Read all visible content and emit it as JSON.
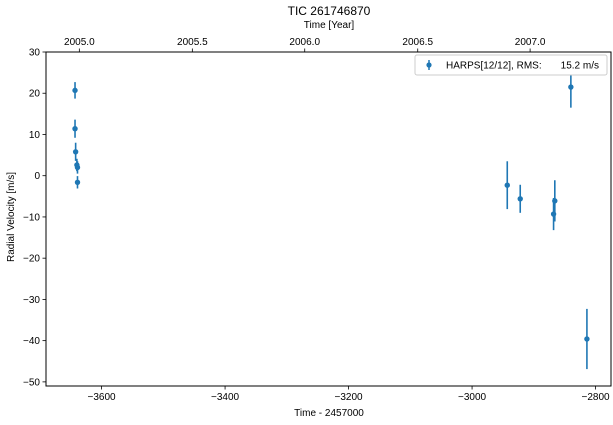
{
  "chart_data": {
    "type": "scatter",
    "title": "TIC 261746870",
    "xlabel": "Time - 2457000",
    "ylabel": "Radial Velocity [m/s]",
    "top_xlabel": "Time [Year]",
    "xlim": [
      -3690,
      -2775
    ],
    "ylim": [
      -51,
      30
    ],
    "x_ticks": [
      -3600,
      -3400,
      -3200,
      -3000,
      -2800
    ],
    "y_ticks": [
      -50,
      -40,
      -30,
      -20,
      -10,
      0,
      10,
      20,
      30
    ],
    "top_ticks": [
      {
        "year": 2005.0,
        "x": -3636
      },
      {
        "year": 2005.5,
        "x": -3453
      },
      {
        "year": 2006.0,
        "x": -3271
      },
      {
        "year": 2006.5,
        "x": -3088
      },
      {
        "year": 2007.0,
        "x": -2906
      }
    ],
    "grid": false,
    "legend": {
      "position": "top-right",
      "label": "HARPS[12/12], RMS:",
      "rms": "15.2 m/s"
    },
    "series": [
      {
        "name": "HARPS[12/12], RMS:",
        "color": "#1f77b4",
        "points": [
          {
            "x": -3643,
            "y": 20.7,
            "err": 2.0
          },
          {
            "x": -3643,
            "y": 11.4,
            "err": 2.2
          },
          {
            "x": -3642,
            "y": 5.8,
            "err": 2.2
          },
          {
            "x": -3640,
            "y": 2.6,
            "err": 1.5
          },
          {
            "x": -3639,
            "y": 2.0,
            "err": 1.5
          },
          {
            "x": -3639,
            "y": -1.6,
            "err": 1.5
          },
          {
            "x": -2943,
            "y": -2.3,
            "err": 5.8
          },
          {
            "x": -2922,
            "y": -5.6,
            "err": 3.4
          },
          {
            "x": -2868,
            "y": -9.3,
            "err": 3.9
          },
          {
            "x": -2866,
            "y": -6.1,
            "err": 5.0
          },
          {
            "x": -2840,
            "y": 21.5,
            "err": 5.0
          },
          {
            "x": -2814,
            "y": -39.6,
            "err": 7.3
          }
        ]
      }
    ]
  }
}
